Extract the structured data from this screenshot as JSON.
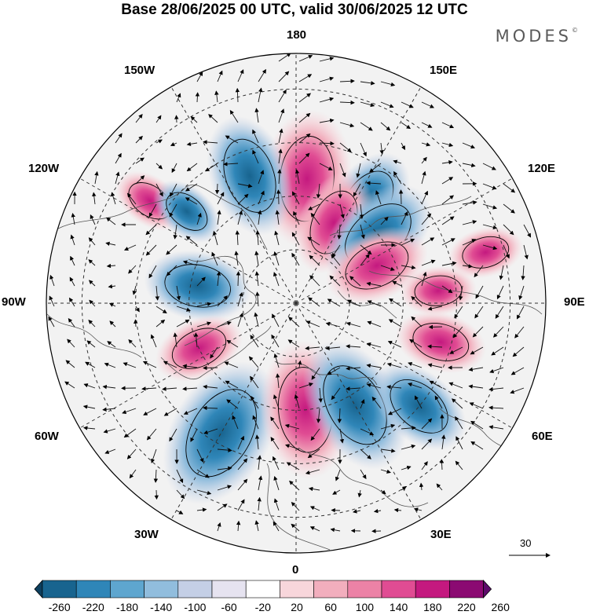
{
  "title": "Base 28/06/2025 00 UTC, valid 30/06/2025 12 UTC",
  "brand": "MODES",
  "brand_mark": "©",
  "longitude_labels": {
    "top": "180",
    "bottom": "0",
    "left": "90W",
    "right": "90E",
    "upper_left_outer": "120W",
    "upper_left_inner": "150W",
    "upper_right_inner": "150E",
    "upper_right_outer": "120E",
    "lower_left_outer": "60W",
    "lower_left_inner": "30W",
    "lower_right_inner": "30E",
    "lower_right_outer": "60E"
  },
  "reference_vector": {
    "label": "30",
    "value": 30
  },
  "colorbar": {
    "ticks": [
      "-260",
      "-220",
      "-180",
      "-140",
      "-100",
      "-60",
      "-20",
      "20",
      "60",
      "100",
      "140",
      "180",
      "220",
      "260"
    ],
    "colors": [
      "#0d3f5e",
      "#18648f",
      "#2f86b8",
      "#5ea6cf",
      "#91bddd",
      "#c4cfe6",
      "#e6e3f0",
      "#ffffff",
      "#f8d6db",
      "#f2aebd",
      "#ec82a6",
      "#e04c93",
      "#c4197f",
      "#8b0a72",
      "#5d0b6a"
    ]
  },
  "anomaly_centers": [
    {
      "sign": "positive",
      "level": 220,
      "lon": 175,
      "lat": 55
    },
    {
      "sign": "negative",
      "level": -180,
      "lon": -160,
      "lat": 52
    },
    {
      "sign": "negative",
      "level": -140,
      "lon": 145,
      "lat": 55
    },
    {
      "sign": "positive",
      "level": 140,
      "lon": 155,
      "lat": 65
    },
    {
      "sign": "negative",
      "level": -180,
      "lon": 130,
      "lat": 60
    },
    {
      "sign": "positive",
      "level": 140,
      "lon": 115,
      "lat": 65
    },
    {
      "sign": "negative",
      "level": -140,
      "lon": -100,
      "lat": 62
    },
    {
      "sign": "positive",
      "level": 100,
      "lon": -65,
      "lat": 60
    },
    {
      "sign": "negative",
      "level": -260,
      "lon": -30,
      "lat": 48
    },
    {
      "sign": "positive",
      "level": 220,
      "lon": 5,
      "lat": 60
    },
    {
      "sign": "negative",
      "level": -220,
      "lon": 30,
      "lat": 57
    },
    {
      "sign": "negative",
      "level": -140,
      "lon": 50,
      "lat": 45
    },
    {
      "sign": "positive",
      "level": 100,
      "lon": 75,
      "lat": 48
    },
    {
      "sign": "positive",
      "level": 60,
      "lon": 95,
      "lat": 50
    },
    {
      "sign": "positive",
      "level": 60,
      "lon": -125,
      "lat": 40
    },
    {
      "sign": "negative",
      "level": -60,
      "lon": -130,
      "lat": 50
    },
    {
      "sign": "positive",
      "level": 60,
      "lon": 105,
      "lat": 35
    }
  ]
}
